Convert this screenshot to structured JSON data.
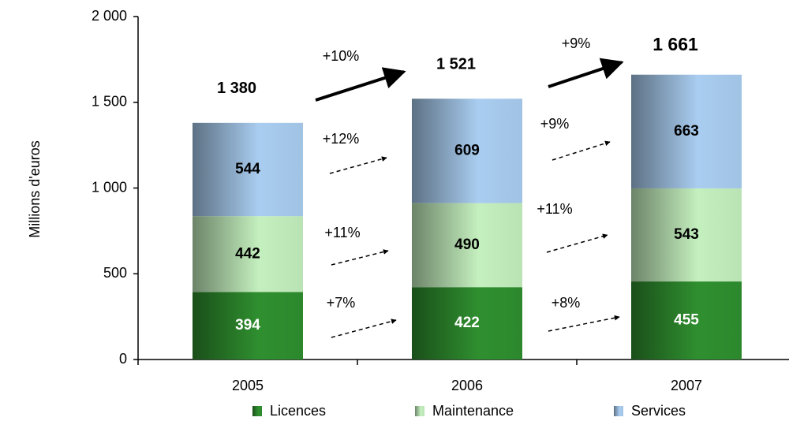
{
  "chart_data": {
    "type": "stacked_bar",
    "y_label": "Millions d'euros",
    "categories": [
      "2005",
      "2006",
      "2007"
    ],
    "series": [
      {
        "name": "Licences",
        "color": "#2f8f2f",
        "label_color": "#ffffff",
        "values": [
          394,
          422,
          455
        ],
        "growth": [
          "+7%",
          "+8%"
        ]
      },
      {
        "name": "Maintenance",
        "color": "#c4efbe",
        "label_color": "#000000",
        "values": [
          442,
          490,
          543
        ],
        "growth": [
          "+11%",
          "+11%"
        ]
      },
      {
        "name": "Services",
        "color": "#a9cdf0",
        "label_color": "#000000",
        "values": [
          544,
          609,
          663
        ],
        "growth": [
          "+12%",
          "+9%"
        ]
      }
    ],
    "totals": {
      "values": [
        1380,
        1521,
        1661
      ],
      "value_labels": [
        "1 380",
        "1 521",
        "1 661"
      ],
      "growth": [
        "+10%",
        "+9%"
      ]
    },
    "ylim": [
      0,
      2000
    ],
    "yticks": [
      0,
      {
        "value": 500,
        "label": "500"
      },
      {
        "value": 1000,
        "label": "1 000"
      },
      {
        "value": 1500,
        "label": "1 500"
      },
      {
        "value": 2000,
        "label": "2 000"
      }
    ],
    "legend": "bottom"
  }
}
